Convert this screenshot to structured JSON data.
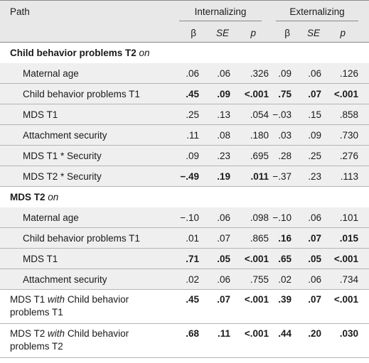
{
  "header": {
    "path_label": "Path",
    "group1": "Internalizing",
    "group2": "Externalizing",
    "cols": [
      "β",
      "SE",
      "p",
      "β",
      "SE",
      "p"
    ]
  },
  "sections": [
    {
      "title": "Child behavior problems T2",
      "title_suffix": "on",
      "rows": [
        {
          "label": "Maternal age",
          "vals": [
            ".06",
            ".06",
            ".326",
            ".09",
            ".06",
            ".126"
          ],
          "bold": [
            false,
            false,
            false,
            false,
            false,
            false
          ]
        },
        {
          "label": "Child behavior problems T1",
          "vals": [
            ".45",
            ".09",
            "<.001",
            ".75",
            ".07",
            "<.001"
          ],
          "bold": [
            true,
            true,
            true,
            true,
            true,
            true
          ]
        },
        {
          "label": "MDS T1",
          "vals": [
            ".25",
            ".13",
            ".054",
            "−.03",
            ".15",
            ".858"
          ],
          "bold": [
            false,
            false,
            false,
            false,
            false,
            false
          ]
        },
        {
          "label": "Attachment security",
          "vals": [
            ".11",
            ".08",
            ".180",
            ".03",
            ".09",
            ".730"
          ],
          "bold": [
            false,
            false,
            false,
            false,
            false,
            false
          ]
        },
        {
          "label": "MDS T1 * Security",
          "vals": [
            ".09",
            ".23",
            ".695",
            ".28",
            ".25",
            ".276"
          ],
          "bold": [
            false,
            false,
            false,
            false,
            false,
            false
          ]
        },
        {
          "label": "MDS T2 * Security",
          "vals": [
            "−.49",
            ".19",
            ".011",
            "−.37",
            ".23",
            ".113"
          ],
          "bold": [
            true,
            true,
            true,
            false,
            false,
            false
          ]
        }
      ]
    },
    {
      "title": "MDS T2",
      "title_suffix": "on",
      "rows": [
        {
          "label": "Maternal age",
          "vals": [
            "−.10",
            ".06",
            ".098",
            "−.10",
            ".06",
            ".101"
          ],
          "bold": [
            false,
            false,
            false,
            false,
            false,
            false
          ]
        },
        {
          "label": "Child behavior problems T1",
          "vals": [
            ".01",
            ".07",
            ".865",
            ".16",
            ".07",
            ".015"
          ],
          "bold": [
            false,
            false,
            false,
            true,
            true,
            true
          ]
        },
        {
          "label": "MDS T1",
          "vals": [
            ".71",
            ".05",
            "<.001",
            ".65",
            ".05",
            "<.001"
          ],
          "bold": [
            true,
            true,
            true,
            true,
            true,
            true
          ]
        },
        {
          "label": "Attachment security",
          "vals": [
            ".02",
            ".06",
            ".755",
            ".02",
            ".06",
            ".734"
          ],
          "bold": [
            false,
            false,
            false,
            false,
            false,
            false
          ]
        }
      ]
    }
  ],
  "with_rows": [
    {
      "label_a": "MDS T1",
      "label_with": "with",
      "label_b": "Child behavior",
      "label_c": "problems T1",
      "vals": [
        ".45",
        ".07",
        "<.001",
        ".39",
        ".07",
        "<.001"
      ]
    },
    {
      "label_a": "MDS T2",
      "label_with": "with",
      "label_b": "Child behavior",
      "label_c": "problems T2",
      "vals": [
        ".68",
        ".11",
        "<.001",
        ".44",
        ".20",
        ".030"
      ]
    }
  ]
}
